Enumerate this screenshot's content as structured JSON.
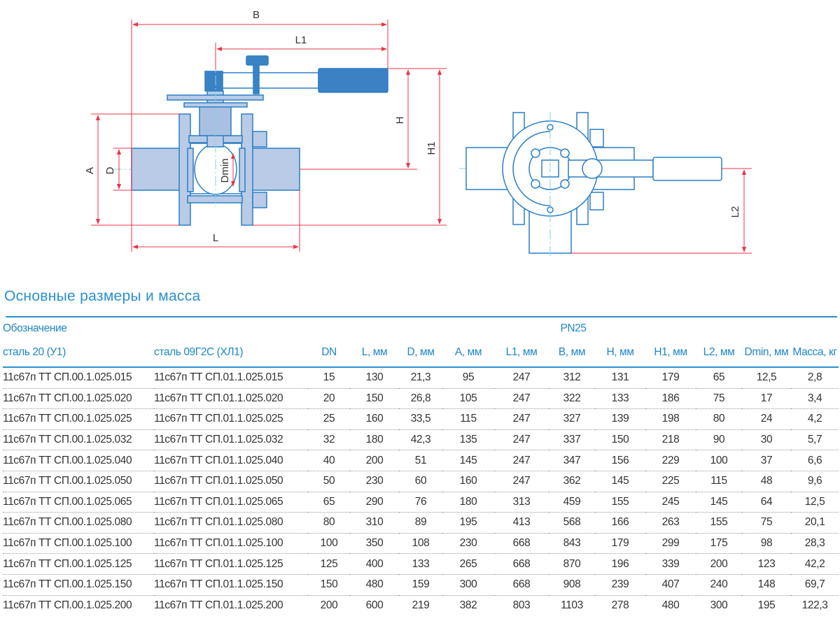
{
  "drawing": {
    "side_view_labels": {
      "B": "B",
      "L1": "L1",
      "H": "H",
      "H1": "H1",
      "A": "A",
      "D": "D",
      "Dmin": "Dmin",
      "L": "L"
    },
    "top_view_labels": {
      "L2": "L2"
    },
    "colors": {
      "body": "#b9cbe6",
      "outline": "#2a7fc6",
      "handle": "#3b82c4",
      "dimension": "#e8354a",
      "centerline": "#7fd3e6"
    }
  },
  "section_title": "Основные размеры и масса",
  "table": {
    "group_header": "Обозначение",
    "pressure_header": "PN25",
    "columns": [
      "сталь 20 (У1)",
      "сталь 09Г2С (ХЛ1)",
      "DN",
      "L, мм",
      "D, мм",
      "A, мм",
      "L1, мм",
      "B, мм",
      "H, мм",
      "H1, мм",
      "L2, мм",
      "Dmin, мм",
      "Масса, кг"
    ],
    "rows": [
      [
        "11с67п ТТ СП.00.1.025.015",
        "11с67п ТТ СП.01.1.025.015",
        "15",
        "130",
        "21,3",
        "95",
        "247",
        "312",
        "131",
        "179",
        "65",
        "12,5",
        "2,8"
      ],
      [
        "11с67п ТТ СП.00.1.025.020",
        "11с67п ТТ СП.01.1.025.020",
        "20",
        "150",
        "26,8",
        "105",
        "247",
        "322",
        "133",
        "186",
        "75",
        "17",
        "3,4"
      ],
      [
        "11с67п ТТ СП.00.1.025.025",
        "11с67п ТТ СП.01.1.025.025",
        "25",
        "160",
        "33,5",
        "115",
        "247",
        "327",
        "139",
        "198",
        "80",
        "24",
        "4,2"
      ],
      [
        "11с67п ТТ СП.00.1.025.032",
        "11с67п ТТ СП.01.1.025.032",
        "32",
        "180",
        "42,3",
        "135",
        "247",
        "337",
        "150",
        "218",
        "90",
        "30",
        "5,7"
      ],
      [
        "11с67п ТТ СП.00.1.025.040",
        "11с67п ТТ СП.01.1.025.040",
        "40",
        "200",
        "51",
        "145",
        "247",
        "347",
        "156",
        "229",
        "100",
        "37",
        "6,6"
      ],
      [
        "11с67п ТТ СП.00.1.025.050",
        "11с67п ТТ СП.01.1.025.050",
        "50",
        "230",
        "60",
        "160",
        "247",
        "362",
        "145",
        "225",
        "115",
        "48",
        "9,6"
      ],
      [
        "11с67п ТТ СП.00.1.025.065",
        "11с67п ТТ СП.01.1.025.065",
        "65",
        "290",
        "76",
        "180",
        "313",
        "459",
        "155",
        "245",
        "145",
        "64",
        "12,5"
      ],
      [
        "11с67п ТТ СП.00.1.025.080",
        "11с67п ТТ СП.01.1.025.080",
        "80",
        "310",
        "89",
        "195",
        "413",
        "568",
        "166",
        "263",
        "155",
        "75",
        "20,1"
      ],
      [
        "11с67п ТТ СП.00.1.025.100",
        "11с67п ТТ СП.01.1.025.100",
        "100",
        "350",
        "108",
        "230",
        "668",
        "843",
        "179",
        "299",
        "175",
        "98",
        "28,3"
      ],
      [
        "11с67п ТТ СП.00.1.025.125",
        "11с67п ТТ СП.01.1.025.125",
        "125",
        "400",
        "133",
        "265",
        "668",
        "870",
        "196",
        "339",
        "200",
        "123",
        "42,2"
      ],
      [
        "11с67п ТТ СП.00.1.025.150",
        "11с67п ТТ СП.01.1.025.150",
        "150",
        "480",
        "159",
        "300",
        "668",
        "908",
        "239",
        "407",
        "240",
        "148",
        "69,7"
      ],
      [
        "11с67п ТТ СП.00.1.025.200",
        "11с67п ТТ СП.01.1.025.200",
        "200",
        "600",
        "219",
        "382",
        "803",
        "1103",
        "278",
        "480",
        "300",
        "195",
        "122,3"
      ]
    ]
  }
}
